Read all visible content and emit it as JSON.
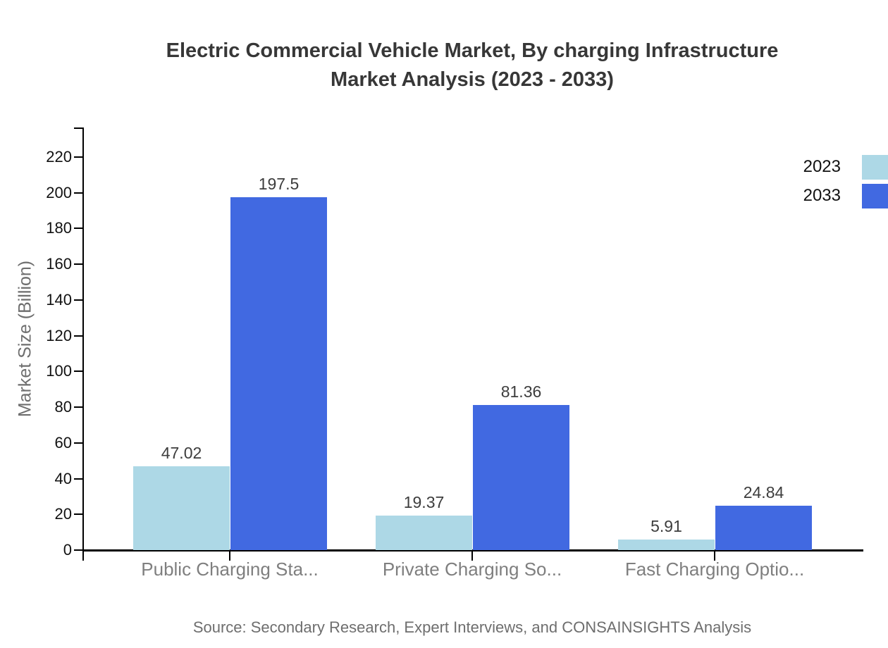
{
  "chart_data": {
    "type": "bar",
    "title": "Electric Commercial Vehicle Market, By charging Infrastructure Market Analysis (2023 - 2033)",
    "title_lines": [
      "Electric Commercial Vehicle Market, By charging Infrastructure",
      "Market Analysis (2023 - 2033)"
    ],
    "categories": [
      "Public Charging Sta...",
      "Private Charging So...",
      "Fast Charging Optio..."
    ],
    "series": [
      {
        "name": "2023",
        "color": "#ADD8E6",
        "values": [
          47.02,
          19.37,
          5.91
        ]
      },
      {
        "name": "2033",
        "color": "#4169E1",
        "values": [
          197.5,
          81.36,
          24.84
        ]
      }
    ],
    "value_labels": [
      [
        "47.02",
        "19.37",
        "5.91"
      ],
      [
        "197.5",
        "81.36",
        "24.84"
      ]
    ],
    "xlabel": "",
    "ylabel": "Market Size (Billion)",
    "ylim": [
      0,
      236
    ],
    "y_ticks": [
      0,
      20,
      40,
      60,
      80,
      100,
      120,
      140,
      160,
      180,
      200,
      220
    ],
    "grid": false,
    "legend_position": "top-right",
    "source": "Source: Secondary Research, Expert Interviews, and CONSAINSIGHTS Analysis"
  },
  "colors": {
    "series_2023": "#ADD8E6",
    "series_2033": "#4169E1",
    "axis": "#000000",
    "title_text": "#373737",
    "muted_text": "#6e6e6e"
  }
}
